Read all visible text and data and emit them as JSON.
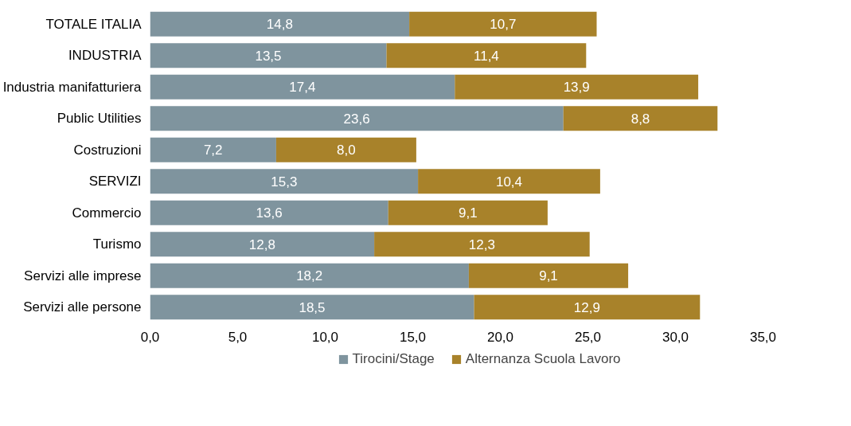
{
  "chart_data": {
    "type": "bar",
    "orientation": "horizontal",
    "stacked": true,
    "categories": [
      "TOTALE ITALIA",
      "INDUSTRIA",
      "Industria manifatturiera",
      "Public Utilities",
      "Costruzioni",
      "SERVIZI",
      "Commercio",
      "Turismo",
      "Servizi alle imprese",
      "Servizi alle persone"
    ],
    "series": [
      {
        "name": "Tirocini/Stage",
        "color": "#7f949e",
        "values": [
          14.8,
          13.5,
          17.4,
          23.6,
          7.2,
          15.3,
          13.6,
          12.8,
          18.2,
          18.5
        ],
        "value_labels": [
          "14,8",
          "13,5",
          "17,4",
          "23,6",
          "7,2",
          "15,3",
          "13,6",
          "12,8",
          "18,2",
          "18,5"
        ]
      },
      {
        "name": "Alternanza Scuola Lavoro",
        "color": "#a8822a",
        "values": [
          10.7,
          11.4,
          13.9,
          8.8,
          8.0,
          10.4,
          9.1,
          12.3,
          9.1,
          12.9
        ],
        "value_labels": [
          "10,7",
          "11,4",
          "13,9",
          "8,8",
          "8,0",
          "10,4",
          "9,1",
          "12,3",
          "9,1",
          "12,9"
        ]
      }
    ],
    "xlim": [
      0,
      35
    ],
    "xticks": [
      {
        "value": 0,
        "label": "0,0"
      },
      {
        "value": 5,
        "label": "5,0"
      },
      {
        "value": 10,
        "label": "10,0"
      },
      {
        "value": 15,
        "label": "15,0"
      },
      {
        "value": 20,
        "label": "20,0"
      },
      {
        "value": 25,
        "label": "25,0"
      },
      {
        "value": 30,
        "label": "30,0"
      },
      {
        "value": 35,
        "label": "35,0"
      }
    ],
    "grid": false,
    "legend": "bottom"
  }
}
